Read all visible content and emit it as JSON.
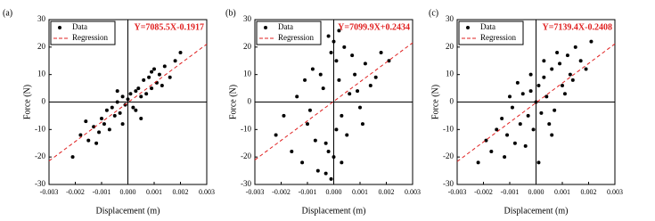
{
  "chart_data": [
    {
      "type": "scatter",
      "title": "(a)",
      "x_label": "Displacement (m)",
      "y_label": "Force (N)",
      "xlim": [
        -0.003,
        0.003
      ],
      "xticks": [
        -0.003,
        -0.002,
        -0.001,
        {
          "value": 0,
          "label": "0.000"
        },
        0.001,
        0.002,
        0.003
      ],
      "ylim": [
        -30,
        30
      ],
      "yticks": [
        -30,
        -20,
        -10,
        0,
        10,
        20,
        30
      ],
      "series": [
        {
          "name": "Data",
          "color": "#000000",
          "x": [
            -0.0021,
            -0.0018,
            -0.0015,
            -0.0013,
            -0.0012,
            -0.001,
            -0.0009,
            -0.0008,
            -0.0007,
            -0.0006,
            -0.0005,
            -0.0004,
            -0.0003,
            -0.0002,
            -0.0001,
            0,
            0.0001,
            0.0002,
            0.0003,
            0.0004,
            0.0005,
            0.0006,
            0.0007,
            0.0008,
            0.0009,
            0.001,
            0.0011,
            0.0012,
            0.0014,
            0.0016,
            0.0018,
            0.002,
            -0.0011,
            -0.0004,
            0.0003,
            0.0009,
            0.0013,
            -0.0016,
            0.0005,
            -0.0002
          ],
          "values": [
            -20,
            -12,
            -14,
            -9,
            -15,
            -6,
            -8,
            -3,
            -10,
            -2,
            -5,
            0,
            -4,
            2,
            -1,
            1,
            3,
            -2,
            4,
            5,
            2,
            8,
            3,
            9,
            5,
            12,
            7,
            10,
            13,
            9,
            15,
            18,
            -11,
            4,
            -3,
            11,
            6,
            -7,
            -6,
            -8
          ]
        }
      ],
      "regression": {
        "name": "Regression",
        "color": "#e02020",
        "equation": "Y=7085.5X-0.1917",
        "slope": 7085.5,
        "intercept": -0.1917
      }
    },
    {
      "type": "scatter",
      "title": "(b)",
      "x_label": "Displacement (m)",
      "y_label": "Force (N)",
      "xlim": [
        -0.003,
        0.003
      ],
      "xticks": [
        -0.003,
        -0.002,
        -0.001,
        {
          "value": 0,
          "label": "0.000"
        },
        0.001,
        0.002,
        0.003
      ],
      "ylim": [
        -30,
        30
      ],
      "yticks": [
        -30,
        -20,
        -10,
        0,
        10,
        20,
        30
      ],
      "series": [
        {
          "name": "Data",
          "color": "#000000",
          "x": [
            -0.0022,
            -0.0019,
            -0.0016,
            -0.0014,
            -0.0012,
            -0.001,
            -0.0008,
            -0.0006,
            -0.0004,
            -0.0003,
            -0.0002,
            -0.0001,
            -0.0001,
            0,
            0,
            0.0001,
            0.0001,
            0.0002,
            0.0003,
            0.0004,
            0.0006,
            0.0008,
            0.001,
            0.0012,
            0.0014,
            0.0016,
            0.0018,
            0.0021,
            -0.0003,
            -0.0005,
            0.0005,
            -0.0009,
            0.0009,
            -0.0002,
            0.0002,
            -0.0011,
            0.0011,
            0.0003,
            -0.0007,
            0.0007
          ],
          "values": [
            -12,
            -5,
            -18,
            2,
            -22,
            -8,
            12,
            -25,
            5,
            -15,
            24,
            -28,
            18,
            -20,
            22,
            -10,
            15,
            8,
            -5,
            20,
            3,
            10,
            -2,
            14,
            6,
            9,
            18,
            15,
            -26,
            10,
            -12,
            -3,
            4,
            -18,
            26,
            8,
            -8,
            -22,
            -14,
            17
          ]
        }
      ],
      "regression": {
        "name": "Regression",
        "color": "#e02020",
        "equation": "Y=7099.9X+0.2434",
        "slope": 7099.9,
        "intercept": 0.2434
      }
    },
    {
      "type": "scatter",
      "title": "(c)",
      "x_label": "Displacement (m)",
      "y_label": "Force (N)",
      "xlim": [
        -0.003,
        0.003
      ],
      "xticks": [
        -0.003,
        -0.002,
        -0.001,
        {
          "value": 0,
          "label": "0.000"
        },
        0.001,
        0.002,
        0.003
      ],
      "ylim": [
        -30,
        30
      ],
      "yticks": [
        -30,
        -20,
        -10,
        0,
        10,
        20,
        30
      ],
      "series": [
        {
          "name": "Data",
          "color": "#000000",
          "x": [
            -0.0022,
            -0.0019,
            -0.0017,
            -0.0015,
            -0.0013,
            -0.0011,
            -0.0009,
            -0.0008,
            -0.0006,
            -0.0005,
            -0.0003,
            -0.0002,
            -0.0001,
            0,
            0.0001,
            0.0002,
            0.0003,
            0.0004,
            0.0006,
            0.0007,
            0.0009,
            0.001,
            0.0012,
            0.0013,
            0.0015,
            0.0017,
            0.0019,
            0.0021,
            -0.001,
            -0.0004,
            0.0005,
            0.0008,
            -0.0007,
            0.0011,
            0.0003,
            -0.0012,
            0.0014,
            -0.0002,
            0.0006,
            0.0001
          ],
          "values": [
            -22,
            -14,
            -18,
            -10,
            -6,
            -12,
            -2,
            -15,
            -8,
            3,
            -5,
            4,
            -10,
            0,
            6,
            -4,
            9,
            2,
            12,
            -3,
            14,
            6,
            17,
            10,
            20,
            15,
            12,
            22,
            2,
            -16,
            -8,
            18,
            7,
            3,
            15,
            -20,
            8,
            10,
            -12,
            -22
          ]
        }
      ],
      "regression": {
        "name": "Regression",
        "color": "#e02020",
        "equation": "Y=7139.4X-0.2408",
        "slope": 7139.4,
        "intercept": -0.2408
      }
    }
  ]
}
